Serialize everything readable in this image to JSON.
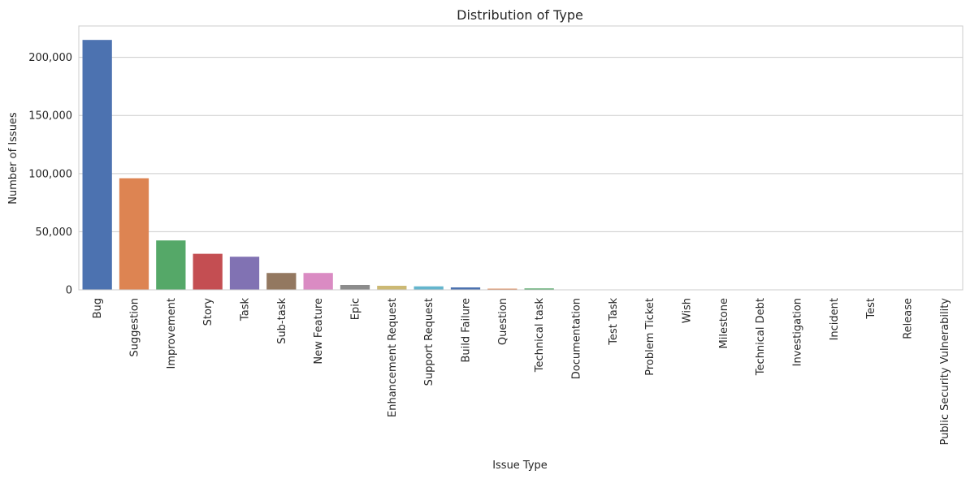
{
  "chart_data": {
    "type": "bar",
    "title": "Distribution of Type",
    "xlabel": "Issue Type",
    "ylabel": "Number of Issues",
    "ylim": [
      0,
      227000
    ],
    "yticks": [
      0,
      50000,
      100000,
      150000,
      200000
    ],
    "ytick_labels": [
      "0",
      "50,000",
      "100,000",
      "150,000",
      "200,000"
    ],
    "grid": true,
    "legend": "none",
    "categories": [
      "Bug",
      "Suggestion",
      "Improvement",
      "Story",
      "Task",
      "Sub-task",
      "New Feature",
      "Epic",
      "Enhancement Request",
      "Support Request",
      "Build Failure",
      "Question",
      "Technical task",
      "Documentation",
      "Test Task",
      "Problem Ticket",
      "Wish",
      "Milestone",
      "Technical Debt",
      "Investigation",
      "Incident",
      "Test",
      "Release",
      "Public Security Vulnerability"
    ],
    "values": [
      215000,
      96000,
      42500,
      31000,
      28500,
      14500,
      14500,
      4200,
      3500,
      3000,
      2100,
      1000,
      1200,
      250,
      200,
      150,
      120,
      100,
      90,
      80,
      60,
      50,
      30,
      10
    ],
    "colors": [
      "#4c72b0",
      "#dd8452",
      "#55a868",
      "#c44e52",
      "#8172b3",
      "#937860",
      "#da8bc3",
      "#8c8c8c",
      "#ccb974",
      "#64b5cd",
      "#4c72b0",
      "#dd8452",
      "#55a868",
      "#c44e52",
      "#8172b3",
      "#937860",
      "#da8bc3",
      "#8c8c8c",
      "#ccb974",
      "#64b5cd",
      "#4c72b0",
      "#dd8452",
      "#55a868",
      "#c44e52"
    ]
  }
}
